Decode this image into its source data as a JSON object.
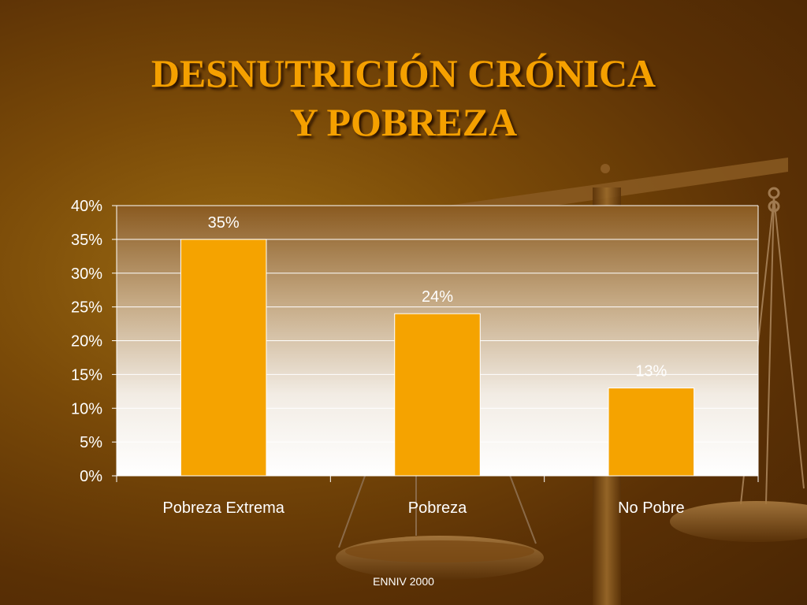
{
  "slide": {
    "title_line1": "DESNUTRICIÓN CRÓNICA",
    "title_line2": "Y POBREZA",
    "footer": "ENNIV 2000"
  },
  "colors": {
    "bar": "#f5a300",
    "title": "#f5a000",
    "label_text": "#ffffff"
  },
  "chart_data": {
    "type": "bar",
    "title": "",
    "xlabel": "",
    "ylabel": "",
    "categories": [
      "Pobreza Extrema",
      "Pobreza",
      "No Pobre"
    ],
    "values": [
      35,
      24,
      13
    ],
    "value_labels": [
      "35%",
      "24%",
      "13%"
    ],
    "ylim": [
      0,
      40
    ],
    "yticks": [
      "0%",
      "5%",
      "10%",
      "15%",
      "20%",
      "25%",
      "30%",
      "35%",
      "40%"
    ],
    "grid": true,
    "legend": "none"
  }
}
